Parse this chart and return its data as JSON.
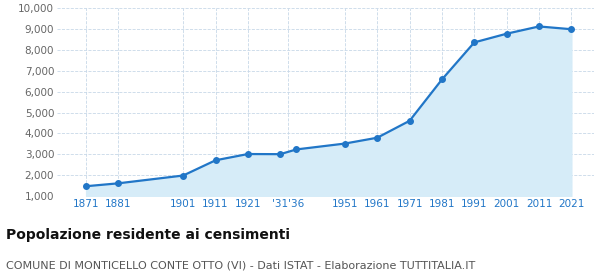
{
  "years": [
    1871,
    1881,
    1901,
    1911,
    1921,
    1931,
    1936,
    1951,
    1961,
    1971,
    1981,
    1991,
    2001,
    2011,
    2021
  ],
  "population": [
    1469,
    1609,
    1982,
    2713,
    3013,
    3007,
    3234,
    3516,
    3796,
    4608,
    6591,
    8369,
    8786,
    9134,
    9001
  ],
  "x_tick_labels": [
    "1871",
    "1881",
    "1901",
    "1911",
    "1921",
    "'31'36",
    "1951",
    "1961",
    "1971",
    "1981",
    "1991",
    "2001",
    "2011",
    "2021"
  ],
  "x_tick_positions": [
    1871,
    1881,
    1901,
    1911,
    1921,
    1933.5,
    1951,
    1961,
    1971,
    1981,
    1991,
    2001,
    2011,
    2021
  ],
  "ylim": [
    1000,
    10000
  ],
  "y_ticks": [
    1000,
    2000,
    3000,
    4000,
    5000,
    6000,
    7000,
    8000,
    9000,
    10000
  ],
  "y_tick_labels": [
    "1,000",
    "2,000",
    "3,000",
    "4,000",
    "5,000",
    "6,000",
    "7,000",
    "8,000",
    "9,000",
    "10,000"
  ],
  "xlim": [
    1862,
    2028
  ],
  "line_color": "#2176c7",
  "fill_color": "#d6ecf8",
  "marker_color": "#2176c7",
  "bg_color": "#ffffff",
  "grid_color": "#c8d8e8",
  "title": "Popolazione residente ai censimenti",
  "subtitle": "COMUNE DI MONTICELLO CONTE OTTO (VI) - Dati ISTAT - Elaborazione TUTTITALIA.IT",
  "title_fontsize": 10,
  "subtitle_fontsize": 8,
  "tick_fontsize": 7.5,
  "xtick_color": "#2176c7",
  "ytick_color": "#666666",
  "marker_size": 4,
  "linewidth": 1.6
}
